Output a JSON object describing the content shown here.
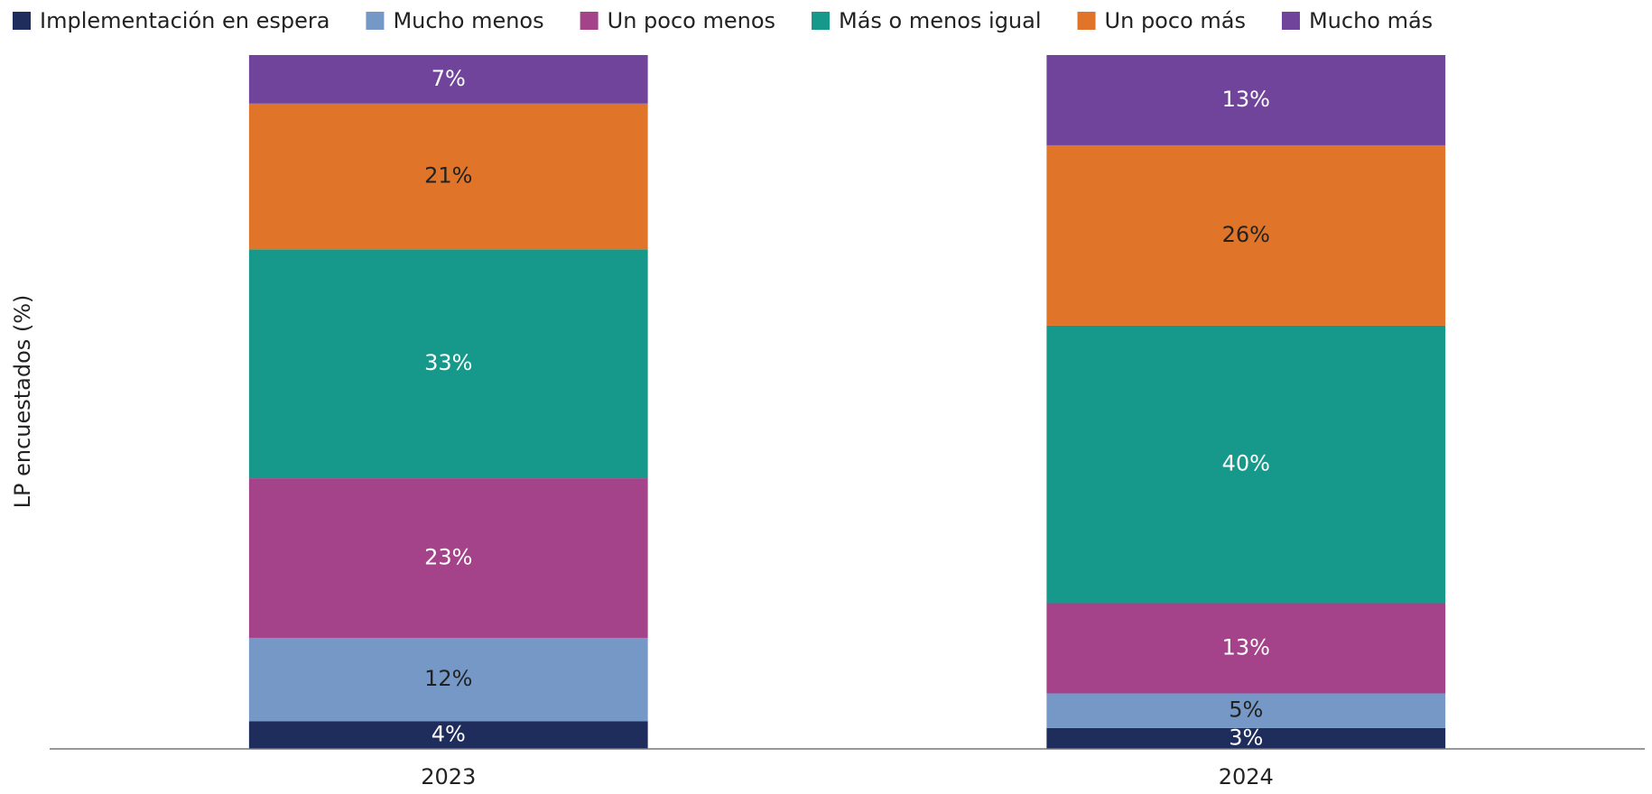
{
  "chart_data": {
    "type": "stacked_bar",
    "y_label": "LP encuestados (%)",
    "categories": [
      "2023",
      "2024"
    ],
    "ylim": [
      0,
      100
    ],
    "series": [
      {
        "name": "Implementación en espera",
        "color": "#1f2d5c",
        "values": [
          4,
          3
        ],
        "value_labels": [
          "4%",
          "3%"
        ]
      },
      {
        "name": "Mucho menos",
        "color": "#7598c6",
        "values": [
          12,
          5
        ],
        "value_labels": [
          "12%",
          "5%"
        ]
      },
      {
        "name": "Un poco menos",
        "color": "#a4428a",
        "values": [
          23,
          13
        ],
        "value_labels": [
          "23%",
          "13%"
        ]
      },
      {
        "name": "Más o menos igual",
        "color": "#16998a",
        "values": [
          33,
          40
        ],
        "value_labels": [
          "33%",
          "40%"
        ]
      },
      {
        "name": "Un poco más",
        "color": "#e07428",
        "values": [
          21,
          26
        ],
        "value_labels": [
          "21%",
          "26%"
        ]
      },
      {
        "name": "Mucho más",
        "color": "#71449b",
        "values": [
          7,
          13
        ],
        "value_labels": [
          "7%",
          "13%"
        ]
      }
    ]
  }
}
